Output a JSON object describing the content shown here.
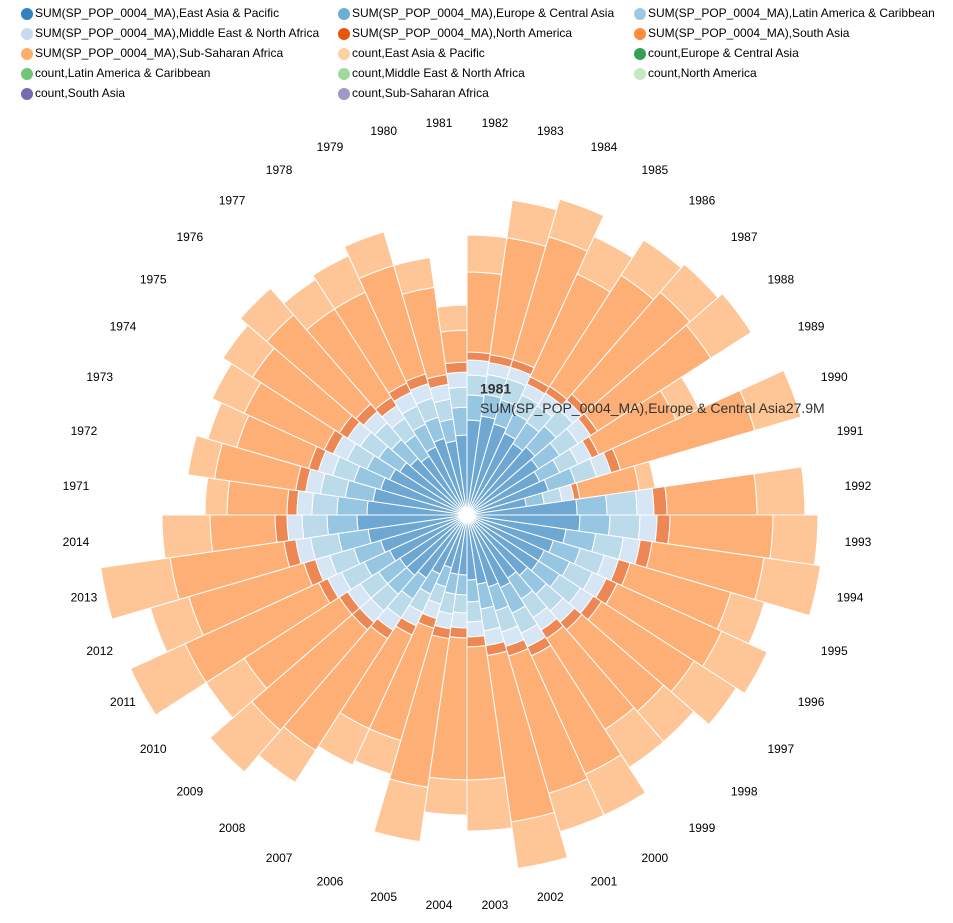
{
  "chart_data": {
    "type": "nightingale",
    "categories": [
      "1982",
      "1983",
      "1984",
      "1985",
      "1986",
      "1987",
      "1988",
      "1989",
      "1990",
      "1991",
      "1992",
      "1993",
      "1994",
      "1995",
      "1996",
      "1997",
      "1998",
      "1999",
      "2000",
      "2001",
      "2002",
      "2003",
      "2004",
      "2005",
      "2006",
      "2007",
      "2008",
      "2009",
      "2010",
      "2011",
      "2012",
      "2013",
      "2014",
      "1971",
      "1972",
      "1973",
      "1974",
      "1975",
      "1976",
      "1977",
      "1978",
      "1979",
      "1980",
      "1981"
    ],
    "series": [
      {
        "name": "SUM(SP_POP_0004_MA),East Asia & Pacific",
        "color": "#3182bd",
        "values": [
          95,
          100,
          95,
          90,
          85,
          90,
          85,
          80,
          85,
          60,
          110,
          113,
          100,
          90,
          85,
          85,
          80,
          75,
          80,
          75,
          70,
          65,
          60,
          60,
          55,
          65,
          75,
          80,
          80,
          85,
          90,
          100,
          110,
          100,
          95,
          90,
          85,
          80,
          75,
          70,
          75,
          80,
          75,
          80
        ]
      },
      {
        "name": "SUM(SP_POP_0004_MA),Europe & Central Asia",
        "color": "#6baed6",
        "values": [
          25,
          22,
          25,
          22,
          25,
          28,
          25,
          22,
          28,
          18,
          30,
          30,
          30,
          28,
          28,
          25,
          25,
          25,
          28,
          25,
          25,
          22,
          20,
          20,
          20,
          22,
          25,
          25,
          25,
          28,
          28,
          30,
          30,
          30,
          28,
          28,
          25,
          25,
          25,
          25,
          25,
          22,
          22,
          27.9
        ]
      },
      {
        "name": "SUM(SP_POP_0004_MA),Latin America & Caribbean",
        "color": "#9ecae1",
        "values": [
          20,
          20,
          22,
          20,
          20,
          22,
          22,
          20,
          22,
          18,
          30,
          30,
          28,
          25,
          25,
          25,
          22,
          22,
          22,
          22,
          22,
          20,
          18,
          20,
          18,
          20,
          22,
          22,
          22,
          25,
          25,
          28,
          25,
          25,
          25,
          22,
          22,
          22,
          22,
          20,
          20,
          20,
          20,
          20
        ]
      },
      {
        "name": "SUM(SP_POP_0004_MA),Middle East & North Africa",
        "color": "#c6dbef",
        "values": [
          15,
          12,
          12,
          12,
          15,
          12,
          15,
          15,
          15,
          12,
          17,
          17,
          17,
          15,
          15,
          15,
          15,
          15,
          15,
          15,
          15,
          15,
          15,
          15,
          15,
          15,
          15,
          15,
          15,
          15,
          15,
          15,
          15,
          15,
          15,
          15,
          15,
          15,
          15,
          15,
          15,
          15,
          15,
          15
        ]
      },
      {
        "name": "SUM(SP_POP_0004_MA),North America",
        "color": "#e6550d",
        "values": [
          8,
          8,
          8,
          8,
          8,
          8,
          8,
          8,
          10,
          6,
          13,
          13,
          12,
          12,
          12,
          10,
          10,
          10,
          10,
          10,
          10,
          10,
          10,
          10,
          10,
          10,
          10,
          10,
          10,
          10,
          12,
          12,
          12,
          10,
          10,
          10,
          10,
          10,
          10,
          10,
          10,
          10,
          10,
          10
        ]
      },
      {
        "name": "SUM(SP_POP_0004_MA),South Asia",
        "color": "#fd8d3c",
        "values": [
          80,
          118,
          128,
          113,
          132,
          135,
          135,
          85,
          140,
          60,
          90,
          103,
          113,
          105,
          115,
          110,
          108,
          108,
          130,
          143,
          168,
          133,
          142,
          150,
          117,
          103,
          133,
          133,
          113,
          147,
          120,
          115,
          65,
          60,
          82,
          75,
          88,
          103,
          118,
          105,
          100,
          113,
          88,
          32
        ]
      },
      {
        "name": "SUM(SP_POP_0004_MA),Sub-Saharan Africa",
        "color": "#fdae6b",
        "values": [
          37,
          38,
          39,
          41,
          42,
          37,
          48,
          25,
          48,
          16,
          48,
          45,
          57,
          35,
          50,
          50,
          40,
          45,
          45,
          40,
          47,
          51,
          35,
          55,
          35,
          40,
          38,
          55,
          45,
          60,
          40,
          70,
          48,
          22,
          27,
          30,
          35,
          35,
          35,
          35,
          40,
          35,
          30,
          25
        ]
      },
      {
        "name": "count,East Asia & Pacific",
        "color": "#fdd0a2",
        "values": [
          null,
          null,
          null,
          null,
          null,
          null,
          null,
          null,
          null,
          null,
          null,
          null,
          null,
          null,
          null,
          null,
          null,
          null,
          null,
          null,
          null,
          null,
          null,
          null,
          null,
          null,
          null,
          null,
          null,
          null,
          null,
          null,
          null,
          null,
          null,
          null,
          null,
          null,
          null,
          null,
          null,
          null,
          null,
          null
        ]
      },
      {
        "name": "count,Europe & Central Asia",
        "color": "#31a354",
        "values": [
          null,
          null,
          null,
          null,
          null,
          null,
          null,
          null,
          null,
          null,
          null,
          null,
          null,
          null,
          null,
          null,
          null,
          null,
          null,
          null,
          null,
          null,
          null,
          null,
          null,
          null,
          null,
          null,
          null,
          null,
          null,
          null,
          null,
          null,
          null,
          null,
          null,
          null,
          null,
          null,
          null,
          null,
          null,
          null
        ]
      },
      {
        "name": "count,Latin America & Caribbean",
        "color": "#74c476",
        "values": [
          null,
          null,
          null,
          null,
          null,
          null,
          null,
          null,
          null,
          null,
          null,
          null,
          null,
          null,
          null,
          null,
          null,
          null,
          null,
          null,
          null,
          null,
          null,
          null,
          null,
          null,
          null,
          null,
          null,
          null,
          null,
          null,
          null,
          null,
          null,
          null,
          null,
          null,
          null,
          null,
          null,
          null,
          null,
          null
        ]
      },
      {
        "name": "count,Middle East & North Africa",
        "color": "#a1d99b",
        "values": [
          null,
          null,
          null,
          null,
          null,
          null,
          null,
          null,
          null,
          null,
          null,
          null,
          null,
          null,
          null,
          null,
          null,
          null,
          null,
          null,
          null,
          null,
          null,
          null,
          null,
          null,
          null,
          null,
          null,
          null,
          null,
          null,
          null,
          null,
          null,
          null,
          null,
          null,
          null,
          null,
          null,
          null,
          null,
          null
        ]
      },
      {
        "name": "count,North America",
        "color": "#c7e9c0",
        "values": [
          null,
          null,
          null,
          null,
          null,
          null,
          null,
          null,
          null,
          null,
          null,
          null,
          null,
          null,
          null,
          null,
          null,
          null,
          null,
          null,
          null,
          null,
          null,
          null,
          null,
          null,
          null,
          null,
          null,
          null,
          null,
          null,
          null,
          null,
          null,
          null,
          null,
          null,
          null,
          null,
          null,
          null,
          null,
          null
        ]
      },
      {
        "name": "count,South Asia",
        "color": "#756bb1",
        "values": [
          null,
          null,
          null,
          null,
          null,
          null,
          null,
          null,
          null,
          null,
          null,
          null,
          null,
          null,
          null,
          null,
          null,
          null,
          null,
          null,
          null,
          null,
          null,
          null,
          null,
          null,
          null,
          null,
          null,
          null,
          null,
          null,
          null,
          null,
          null,
          null,
          null,
          null,
          null,
          null,
          null,
          null,
          null,
          null
        ]
      },
      {
        "name": "count,Sub-Saharan Africa",
        "color": "#9e9ac8",
        "values": [
          null,
          null,
          null,
          null,
          null,
          null,
          null,
          null,
          null,
          null,
          null,
          null,
          null,
          null,
          null,
          null,
          null,
          null,
          null,
          null,
          null,
          null,
          null,
          null,
          null,
          null,
          null,
          null,
          null,
          null,
          null,
          null,
          null,
          null,
          null,
          null,
          null,
          null,
          null,
          null,
          null,
          null,
          null,
          null
        ]
      }
    ],
    "tooltip": {
      "category": "1981",
      "series": "SUM(SP_POP_0004_MA),Europe & Central Asia",
      "value_label": "27.9M"
    }
  }
}
